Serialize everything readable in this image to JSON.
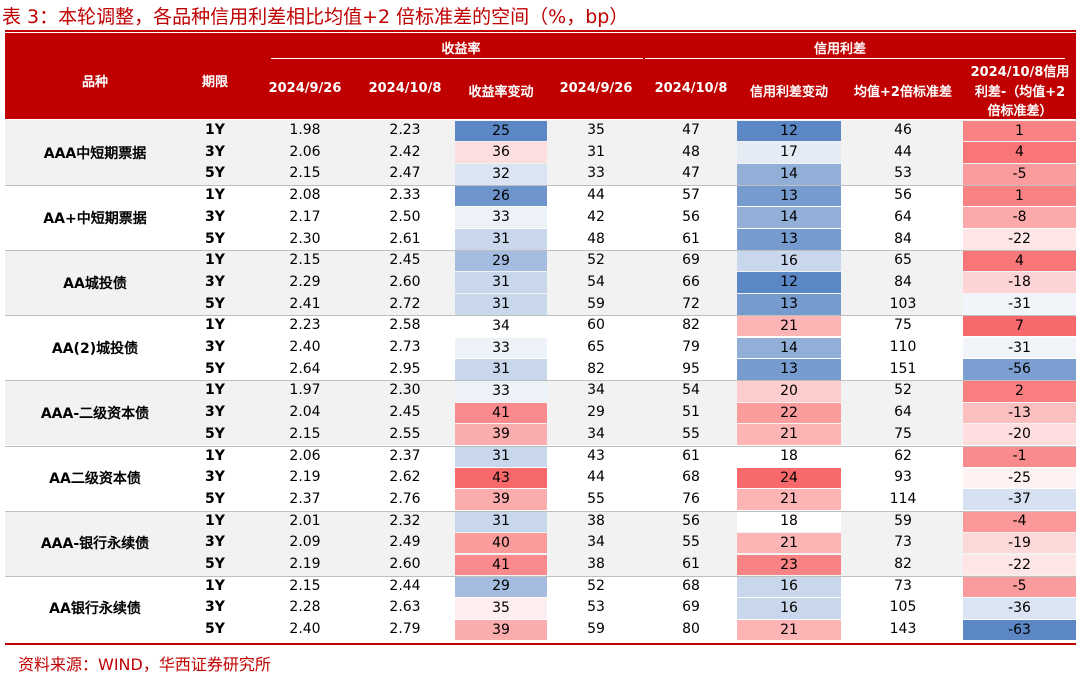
{
  "title": "表 3：本轮调整，各品种信用利差相比均值+2 倍标准差的空间（%，bp）",
  "source": "资料来源：WIND，华西证券研究所",
  "header": {
    "group_yield": "收益率",
    "group_spread": "信用利差",
    "product": "品种",
    "tenor": "期限",
    "yield_d1": "2024/9/26",
    "yield_d2": "2024/10/8",
    "yield_chg": "收益率变动",
    "spread_d1": "2024/9/26",
    "spread_d2": "2024/10/8",
    "spread_chg": "信用利差变动",
    "mean2sd": "均值+2倍标准差",
    "last_line1": "2024/10/8信用",
    "last_line2": "利差-（均值+2",
    "last_line3": "倍标准差）"
  },
  "colors": {
    "brand_red": "#c00000",
    "row_shade": "#f2f2f2",
    "heat_low": "#5b87c5",
    "heat_mid": "#ffffff",
    "heat_high": "#f8696b"
  },
  "groups": [
    {
      "product": "AAA中短期票据",
      "rows": [
        {
          "tenor": "1Y",
          "y1": "1.98",
          "y2": "2.23",
          "ychg": "25",
          "s1": "35",
          "s2": "47",
          "schg": "12",
          "m2sd": "46",
          "diff": "1"
        },
        {
          "tenor": "3Y",
          "y1": "2.06",
          "y2": "2.42",
          "ychg": "36",
          "s1": "31",
          "s2": "48",
          "schg": "17",
          "m2sd": "44",
          "diff": "4"
        },
        {
          "tenor": "5Y",
          "y1": "2.15",
          "y2": "2.47",
          "ychg": "32",
          "s1": "33",
          "s2": "47",
          "schg": "14",
          "m2sd": "53",
          "diff": "-5"
        }
      ]
    },
    {
      "product": "AA+中短期票据",
      "rows": [
        {
          "tenor": "1Y",
          "y1": "2.08",
          "y2": "2.33",
          "ychg": "26",
          "s1": "44",
          "s2": "57",
          "schg": "13",
          "m2sd": "56",
          "diff": "1"
        },
        {
          "tenor": "3Y",
          "y1": "2.17",
          "y2": "2.50",
          "ychg": "33",
          "s1": "42",
          "s2": "56",
          "schg": "14",
          "m2sd": "64",
          "diff": "-8"
        },
        {
          "tenor": "5Y",
          "y1": "2.30",
          "y2": "2.61",
          "ychg": "31",
          "s1": "48",
          "s2": "61",
          "schg": "13",
          "m2sd": "84",
          "diff": "-22"
        }
      ]
    },
    {
      "product": "AA城投债",
      "rows": [
        {
          "tenor": "1Y",
          "y1": "2.15",
          "y2": "2.45",
          "ychg": "29",
          "s1": "52",
          "s2": "69",
          "schg": "16",
          "m2sd": "65",
          "diff": "4"
        },
        {
          "tenor": "3Y",
          "y1": "2.29",
          "y2": "2.60",
          "ychg": "31",
          "s1": "54",
          "s2": "66",
          "schg": "12",
          "m2sd": "84",
          "diff": "-18"
        },
        {
          "tenor": "5Y",
          "y1": "2.41",
          "y2": "2.72",
          "ychg": "31",
          "s1": "59",
          "s2": "72",
          "schg": "13",
          "m2sd": "103",
          "diff": "-31"
        }
      ]
    },
    {
      "product": "AA(2)城投债",
      "rows": [
        {
          "tenor": "1Y",
          "y1": "2.23",
          "y2": "2.58",
          "ychg": "34",
          "s1": "60",
          "s2": "82",
          "schg": "21",
          "m2sd": "75",
          "diff": "7"
        },
        {
          "tenor": "3Y",
          "y1": "2.40",
          "y2": "2.73",
          "ychg": "33",
          "s1": "65",
          "s2": "79",
          "schg": "14",
          "m2sd": "110",
          "diff": "-31"
        },
        {
          "tenor": "5Y",
          "y1": "2.64",
          "y2": "2.95",
          "ychg": "31",
          "s1": "82",
          "s2": "95",
          "schg": "13",
          "m2sd": "151",
          "diff": "-56"
        }
      ]
    },
    {
      "product": "AAA-二级资本债",
      "rows": [
        {
          "tenor": "1Y",
          "y1": "1.97",
          "y2": "2.30",
          "ychg": "33",
          "s1": "34",
          "s2": "54",
          "schg": "20",
          "m2sd": "52",
          "diff": "2"
        },
        {
          "tenor": "3Y",
          "y1": "2.04",
          "y2": "2.45",
          "ychg": "41",
          "s1": "29",
          "s2": "51",
          "schg": "22",
          "m2sd": "64",
          "diff": "-13"
        },
        {
          "tenor": "5Y",
          "y1": "2.15",
          "y2": "2.55",
          "ychg": "39",
          "s1": "34",
          "s2": "55",
          "schg": "21",
          "m2sd": "75",
          "diff": "-20"
        }
      ]
    },
    {
      "product": "AA二级资本债",
      "rows": [
        {
          "tenor": "1Y",
          "y1": "2.06",
          "y2": "2.37",
          "ychg": "31",
          "s1": "43",
          "s2": "61",
          "schg": "18",
          "m2sd": "62",
          "diff": "-1"
        },
        {
          "tenor": "3Y",
          "y1": "2.19",
          "y2": "2.62",
          "ychg": "43",
          "s1": "44",
          "s2": "68",
          "schg": "24",
          "m2sd": "93",
          "diff": "-25"
        },
        {
          "tenor": "5Y",
          "y1": "2.37",
          "y2": "2.76",
          "ychg": "39",
          "s1": "55",
          "s2": "76",
          "schg": "21",
          "m2sd": "114",
          "diff": "-37"
        }
      ]
    },
    {
      "product": "AAA-银行永续债",
      "rows": [
        {
          "tenor": "1Y",
          "y1": "2.01",
          "y2": "2.32",
          "ychg": "31",
          "s1": "38",
          "s2": "56",
          "schg": "18",
          "m2sd": "59",
          "diff": "-4"
        },
        {
          "tenor": "3Y",
          "y1": "2.09",
          "y2": "2.49",
          "ychg": "40",
          "s1": "34",
          "s2": "55",
          "schg": "21",
          "m2sd": "73",
          "diff": "-19"
        },
        {
          "tenor": "5Y",
          "y1": "2.19",
          "y2": "2.60",
          "ychg": "41",
          "s1": "38",
          "s2": "61",
          "schg": "23",
          "m2sd": "82",
          "diff": "-22"
        }
      ]
    },
    {
      "product": "AA银行永续债",
      "rows": [
        {
          "tenor": "1Y",
          "y1": "2.15",
          "y2": "2.44",
          "ychg": "29",
          "s1": "52",
          "s2": "68",
          "schg": "16",
          "m2sd": "73",
          "diff": "-5"
        },
        {
          "tenor": "3Y",
          "y1": "2.28",
          "y2": "2.63",
          "ychg": "35",
          "s1": "53",
          "s2": "69",
          "schg": "16",
          "m2sd": "105",
          "diff": "-36"
        },
        {
          "tenor": "5Y",
          "y1": "2.40",
          "y2": "2.79",
          "ychg": "39",
          "s1": "59",
          "s2": "80",
          "schg": "21",
          "m2sd": "143",
          "diff": "-63"
        }
      ]
    }
  ]
}
